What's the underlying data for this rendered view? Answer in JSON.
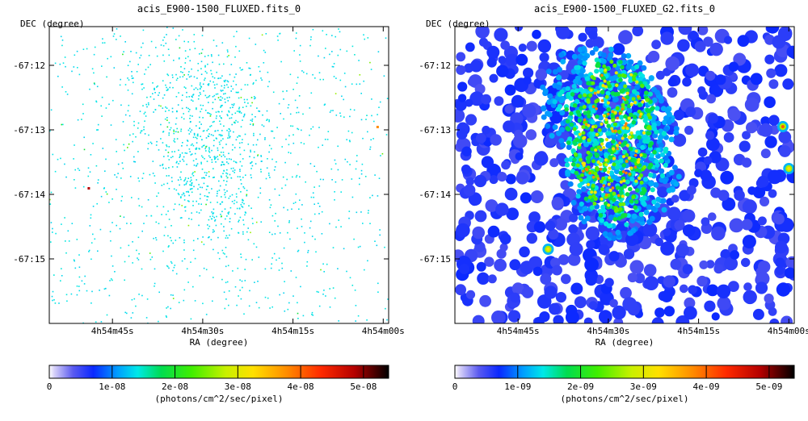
{
  "chart_data": [
    {
      "type": "heatmap",
      "title": "acis_E900-1500_FLUXED.fits_0",
      "xlabel": "RA (degree)",
      "ylabel": "DEC (degree)",
      "x_ticks": [
        "4h54m45s",
        "4h54m30s",
        "4h54m15s",
        "4h54m00s"
      ],
      "y_ticks": [
        "-67:12",
        "-67:13",
        "-67:14",
        "-67:15"
      ],
      "colorbar": {
        "label": "(photons/cm^2/sec/pixel)",
        "ticks": [
          "0",
          "1e-08",
          "2e-08",
          "3e-08",
          "4e-08",
          "5e-08"
        ],
        "range": [
          0,
          5.4e-08
        ]
      },
      "style": "sparse",
      "bright_sources": [
        {
          "ra_s": 49,
          "dec_min": 13.9,
          "level": 0.9
        },
        {
          "ra_s": 1,
          "dec_min": 12.95,
          "level": 0.7
        }
      ]
    },
    {
      "type": "heatmap",
      "title": "acis_E900-1500_FLUXED_G2.fits_0",
      "xlabel": "RA (degree)",
      "ylabel": "DEC (degree)",
      "x_ticks": [
        "4h54m45s",
        "4h54m30s",
        "4h54m15s",
        "4h54m00s"
      ],
      "y_ticks": [
        "-67:12",
        "-67:13",
        "-67:14",
        "-67:15"
      ],
      "colorbar": {
        "label": "(photons/cm^2/sec/pixel)",
        "ticks": [
          "0",
          "1e-09",
          "2e-09",
          "3e-09",
          "4e-09",
          "5e-09"
        ],
        "range": [
          0,
          5.4e-09
        ]
      },
      "style": "smoothed",
      "bright_sources": [
        {
          "ra_s": 1,
          "dec_min": 12.95,
          "level": 0.75
        },
        {
          "ra_s": 40,
          "dec_min": 14.85,
          "level": 0.6
        },
        {
          "ra_s": 0,
          "dec_min": 13.6,
          "level": 0.6
        }
      ]
    }
  ]
}
